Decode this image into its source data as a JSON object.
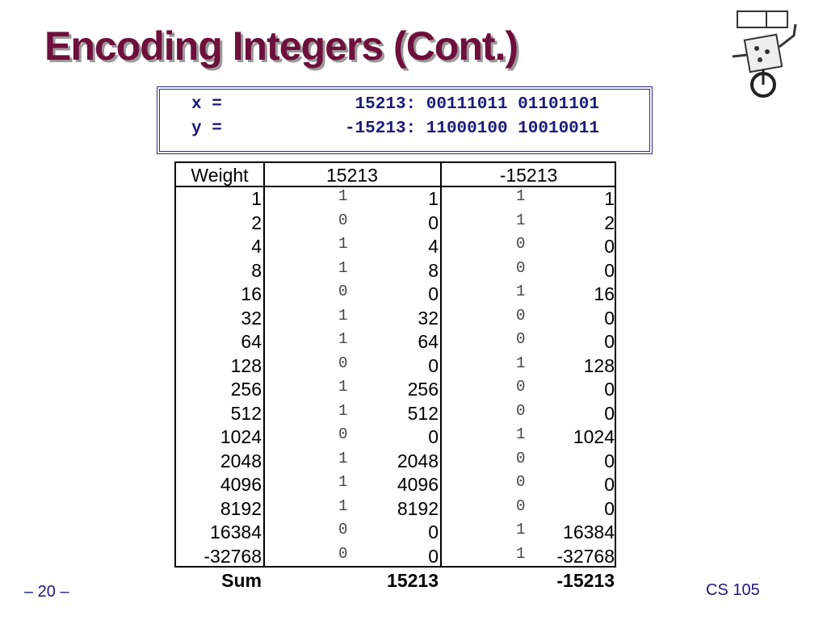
{
  "title": "Encoding Integers (Cont.)",
  "code": {
    "lines": [
      [
        "x =",
        "15213: 00111011 01101101"
      ],
      [
        "y =",
        "-15213: 11000100 10010011"
      ]
    ]
  },
  "table": {
    "header": [
      "Weight",
      "15213",
      "-15213"
    ],
    "rows": [
      [
        1,
        1,
        1,
        1,
        1
      ],
      [
        2,
        0,
        0,
        1,
        2
      ],
      [
        4,
        1,
        4,
        0,
        0
      ],
      [
        8,
        1,
        8,
        0,
        0
      ],
      [
        16,
        0,
        0,
        1,
        16
      ],
      [
        32,
        1,
        32,
        0,
        0
      ],
      [
        64,
        1,
        64,
        0,
        0
      ],
      [
        128,
        0,
        0,
        1,
        128
      ],
      [
        256,
        1,
        256,
        0,
        0
      ],
      [
        512,
        1,
        512,
        0,
        0
      ],
      [
        1024,
        0,
        0,
        1,
        1024
      ],
      [
        2048,
        1,
        2048,
        0,
        0
      ],
      [
        4096,
        1,
        4096,
        0,
        0
      ],
      [
        8192,
        1,
        8192,
        0,
        0
      ],
      [
        16384,
        0,
        0,
        1,
        16384
      ],
      [
        -32768,
        0,
        0,
        1,
        -32768
      ]
    ],
    "sum": [
      "Sum",
      15213,
      -15213
    ]
  },
  "footer": {
    "left": "– 20 –",
    "right": "CS 105"
  }
}
